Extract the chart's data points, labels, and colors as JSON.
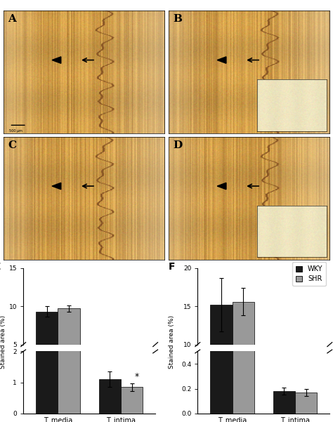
{
  "panel_labels": [
    "A",
    "B",
    "C",
    "D"
  ],
  "chart_labels": [
    "E",
    "F"
  ],
  "categories": [
    "T. media",
    "T. intima"
  ],
  "legend_labels": [
    "WKY",
    "SHR"
  ],
  "bar_colors": [
    "#1a1a1a",
    "#999999"
  ],
  "bar_width": 0.35,
  "E_media_vals": [
    9.3,
    9.7
  ],
  "E_media_errs": [
    0.7,
    0.4
  ],
  "E_intima_vals": [
    1.1,
    0.85
  ],
  "E_intima_errs": [
    0.25,
    0.12
  ],
  "F_media_vals": [
    15.2,
    15.6
  ],
  "F_media_errs": [
    3.5,
    1.8
  ],
  "F_intima_vals": [
    0.18,
    0.17
  ],
  "F_intima_errs": [
    0.03,
    0.03
  ],
  "E_ytop_lim": [
    5,
    15
  ],
  "E_ybot_lim": [
    0,
    2
  ],
  "F_ytop_lim": [
    10,
    20
  ],
  "F_ybot_lim": [
    0.0,
    0.5
  ],
  "E_ytop_ticks": [
    5,
    10,
    15
  ],
  "E_ybot_ticks": [
    0,
    1,
    2
  ],
  "F_ytop_ticks": [
    10,
    15,
    20
  ],
  "F_ybot_ticks": [
    0.0,
    0.2,
    0.4
  ],
  "ylabel": "Stained area (%)",
  "significance_marker": "*",
  "bg_color": "#f5f0e8"
}
